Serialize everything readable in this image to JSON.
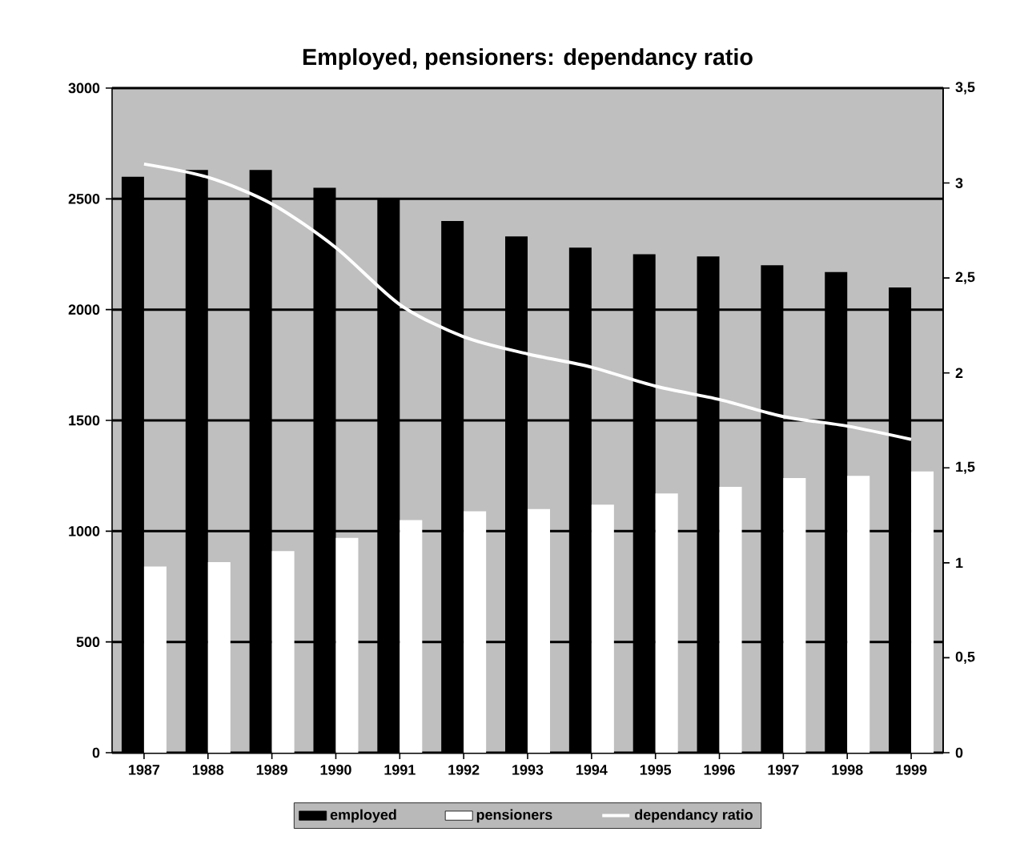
{
  "chart_data": {
    "type": "bar",
    "title": "Employed, pensioners: dependancy ratio",
    "categories": [
      "1987",
      "1988",
      "1989",
      "1990",
      "1991",
      "1992",
      "1993",
      "1994",
      "1995",
      "1996",
      "1997",
      "1998",
      "1999"
    ],
    "series": [
      {
        "name": "employed",
        "color": "#000000",
        "values": [
          2600,
          2630,
          2630,
          2550,
          2500,
          2400,
          2330,
          2280,
          2250,
          2240,
          2200,
          2170,
          2100
        ]
      },
      {
        "name": "pensioners",
        "color": "#ffffff",
        "values": [
          840,
          860,
          910,
          970,
          1050,
          1090,
          1100,
          1120,
          1170,
          1200,
          1240,
          1250,
          1270
        ]
      },
      {
        "name": "dependancy ratio",
        "type": "line",
        "axis": "y2",
        "color": "#ffffff",
        "values": [
          3.1,
          3.03,
          2.89,
          2.66,
          2.36,
          2.19,
          2.1,
          2.03,
          1.93,
          1.86,
          1.77,
          1.72,
          1.65
        ]
      }
    ],
    "ylim": [
      0,
      3000
    ],
    "yticks": [
      0,
      500,
      1000,
      1500,
      2000,
      2500,
      3000
    ],
    "y2lim": [
      0,
      3.5
    ],
    "y2ticks": [
      0,
      {
        "value": 0.5,
        "label": "0,5"
      },
      1,
      {
        "value": 1.5,
        "label": "1,5"
      },
      2,
      {
        "value": 2.5,
        "label": "2,5"
      },
      3,
      {
        "value": 3.5,
        "label": "3,5"
      }
    ],
    "grid": "y",
    "legend": "bottom"
  }
}
